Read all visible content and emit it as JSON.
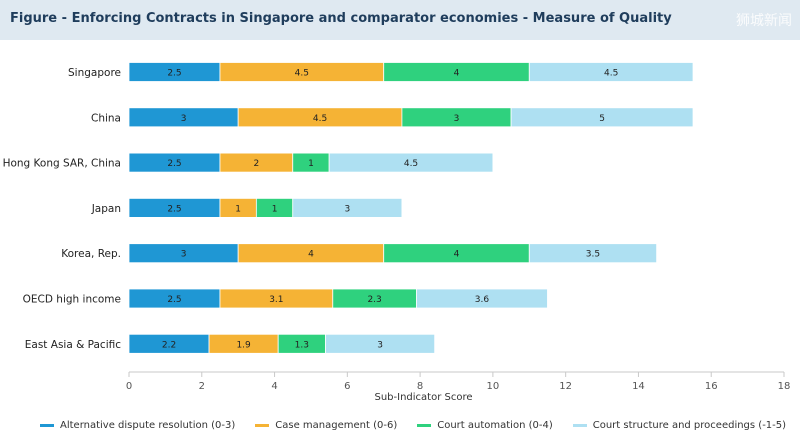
{
  "header": {
    "title": "Figure - Enforcing Contracts in Singapore and comparator economies - Measure of Quality"
  },
  "watermark": "狮城新闻",
  "chart_data": {
    "type": "bar",
    "orientation": "horizontal",
    "stacked": true,
    "categories": [
      "Singapore",
      "China",
      "Hong Kong SAR, China",
      "Japan",
      "Korea, Rep.",
      "OECD high income",
      "East Asia & Pacific"
    ],
    "series": [
      {
        "name": "Alternative dispute resolution (0-3)",
        "color": "#1f97d4",
        "values": [
          2.5,
          3,
          2.5,
          2.5,
          3,
          2.5,
          2.2
        ]
      },
      {
        "name": "Case management (0-6)",
        "color": "#f5b335",
        "values": [
          4.5,
          4.5,
          2,
          1,
          4,
          3.1,
          1.9
        ]
      },
      {
        "name": "Court automation (0-4)",
        "color": "#2fd17e",
        "values": [
          4,
          3,
          1,
          1,
          4,
          2.3,
          1.3
        ]
      },
      {
        "name": "Court structure and proceedings (-1-5)",
        "color": "#aee0f2",
        "values": [
          4.5,
          5,
          4.5,
          3,
          3.5,
          3.6,
          3
        ]
      }
    ],
    "value_labels": [
      [
        "2.5",
        "3",
        "2.5",
        "2.5",
        "3",
        "2.5",
        "2.2"
      ],
      [
        "4.5",
        "4.5",
        "2",
        "1",
        "4",
        "3.1",
        "1.9"
      ],
      [
        "4",
        "3",
        "1",
        "1",
        "4",
        "2.3",
        "1.3"
      ],
      [
        "4.5",
        "5",
        "4.5",
        "3",
        "3.5",
        "3.6",
        "3"
      ]
    ],
    "xlabel": "Sub-Indicator Score",
    "xlim": [
      0,
      18
    ],
    "xticks": [
      0,
      2,
      4,
      6,
      8,
      10,
      12,
      14,
      16,
      18
    ],
    "grid": false,
    "legend_position": "bottom"
  }
}
